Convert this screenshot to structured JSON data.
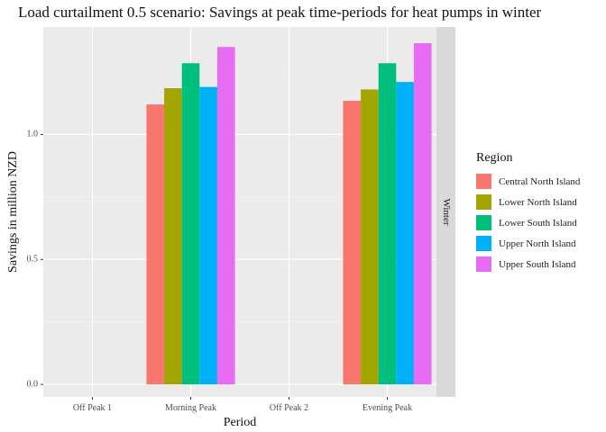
{
  "chart_data": {
    "type": "bar",
    "title": "Load curtailment 0.5 scenario: Savings at peak time-periods for heat pumps in winter",
    "xlabel": "Period",
    "ylabel": "Savings in million NZD",
    "facet_label": "Winter",
    "categories": [
      "Off Peak 1",
      "Morning Peak",
      "Off Peak 2",
      "Evening Peak"
    ],
    "y_ticks": [
      0.0,
      0.5,
      1.0
    ],
    "y_tick_labels": [
      "0.0",
      "0.5",
      "1.0"
    ],
    "ylim": [
      -0.05,
      1.43
    ],
    "grid": true,
    "legend": {
      "title": "Region",
      "position": "right"
    },
    "series": [
      {
        "name": "Central North Island",
        "color": "#F8766D",
        "values": [
          0,
          1.12,
          0,
          1.135
        ]
      },
      {
        "name": "Lower North Island",
        "color": "#A3A500",
        "values": [
          0,
          1.185,
          0,
          1.18
        ]
      },
      {
        "name": "Lower South Island",
        "color": "#00BF7D",
        "values": [
          0,
          1.285,
          0,
          1.285
        ]
      },
      {
        "name": "Upper North Island",
        "color": "#00B0F6",
        "values": [
          0,
          1.19,
          0,
          1.21
        ]
      },
      {
        "name": "Upper South Island",
        "color": "#E76BF3",
        "values": [
          0,
          1.35,
          0,
          1.365
        ]
      }
    ]
  }
}
